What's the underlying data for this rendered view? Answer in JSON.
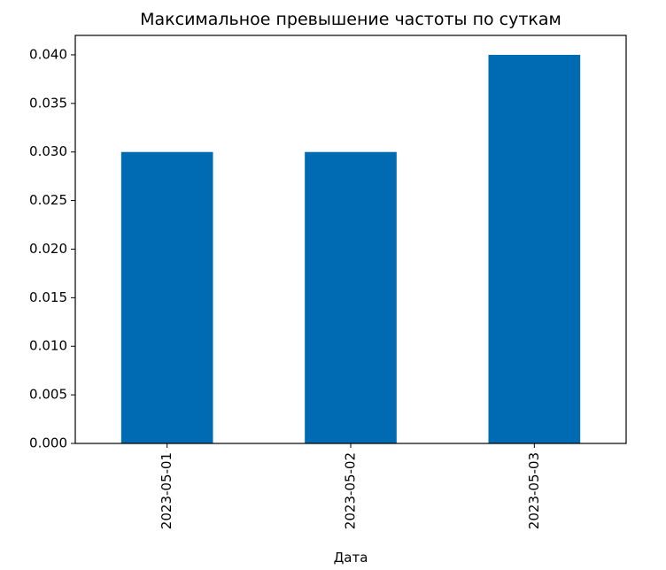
{
  "chart_data": {
    "type": "bar",
    "title": "Максимальное превышение частоты по суткам",
    "xlabel": "Дата",
    "ylabel": "",
    "categories": [
      "2023-05-01",
      "2023-05-02",
      "2023-05-03"
    ],
    "values": [
      0.03,
      0.03,
      0.04
    ],
    "ylim": [
      0,
      0.042
    ],
    "yticks": [
      0.0,
      0.005,
      0.01,
      0.015,
      0.02,
      0.025,
      0.03,
      0.035,
      0.04
    ],
    "ytick_labels": [
      "0.000",
      "0.005",
      "0.010",
      "0.015",
      "0.020",
      "0.025",
      "0.030",
      "0.035",
      "0.040"
    ],
    "bar_color": "#006bb3",
    "grid": false,
    "legend": "none"
  }
}
